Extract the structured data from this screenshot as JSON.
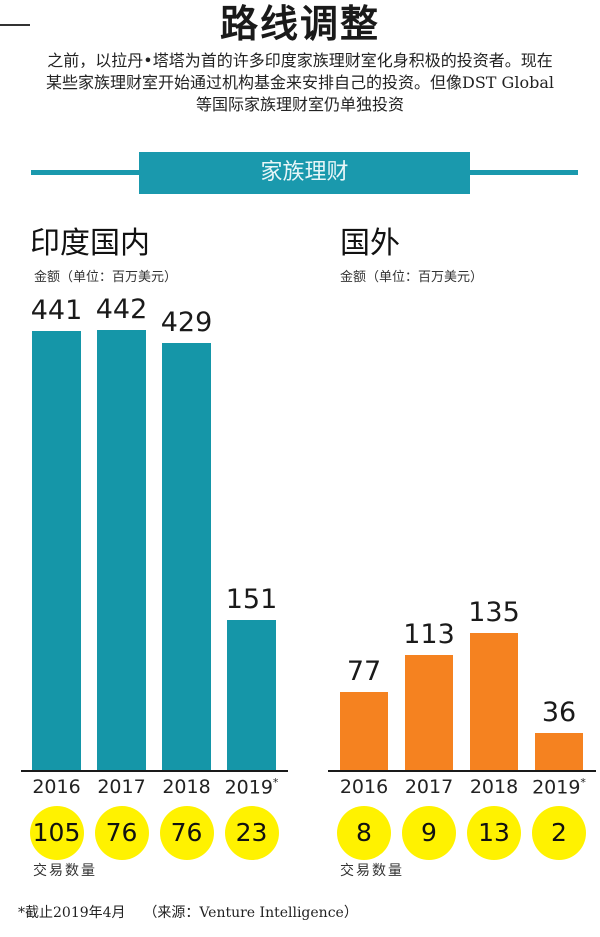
{
  "title": "路线调整",
  "subtitle": "之前，以拉丹•塔塔为首的许多印度家族理财室化身积极的投资者。现在某些家族理财室开始通过机构基金来安排自己的投资。但像DST Global 等国际家族理财室仍单独投资",
  "banner": "家族理财",
  "colors": {
    "teal": "#1596a8",
    "orange": "#f58220",
    "yellow": "#fff200"
  },
  "panels": {
    "domestic": {
      "title": "印度国内",
      "unit": "金额（单位：百万美元）",
      "deals_label": "交易数量"
    },
    "overseas": {
      "title": "国外",
      "unit": "金额（单位：百万美元）",
      "deals_label": "交易数量"
    }
  },
  "footnote": "*截止2019年4月    （来源：Venture Intelligence）",
  "chart_data": [
    {
      "type": "bar",
      "title": "印度国内",
      "ylabel": "金额（单位：百万美元）",
      "categories": [
        "2016",
        "2017",
        "2018",
        "2019*"
      ],
      "values": [
        441,
        442,
        429,
        151
      ],
      "deal_counts": [
        105,
        76,
        76,
        23
      ],
      "color": "#1596a8"
    },
    {
      "type": "bar",
      "title": "国外",
      "ylabel": "金额（单位：百万美元）",
      "categories": [
        "2016",
        "2017",
        "2018",
        "2019*"
      ],
      "values": [
        77,
        113,
        135,
        36
      ],
      "deal_counts": [
        8,
        9,
        13,
        2
      ],
      "color": "#f58220"
    }
  ]
}
